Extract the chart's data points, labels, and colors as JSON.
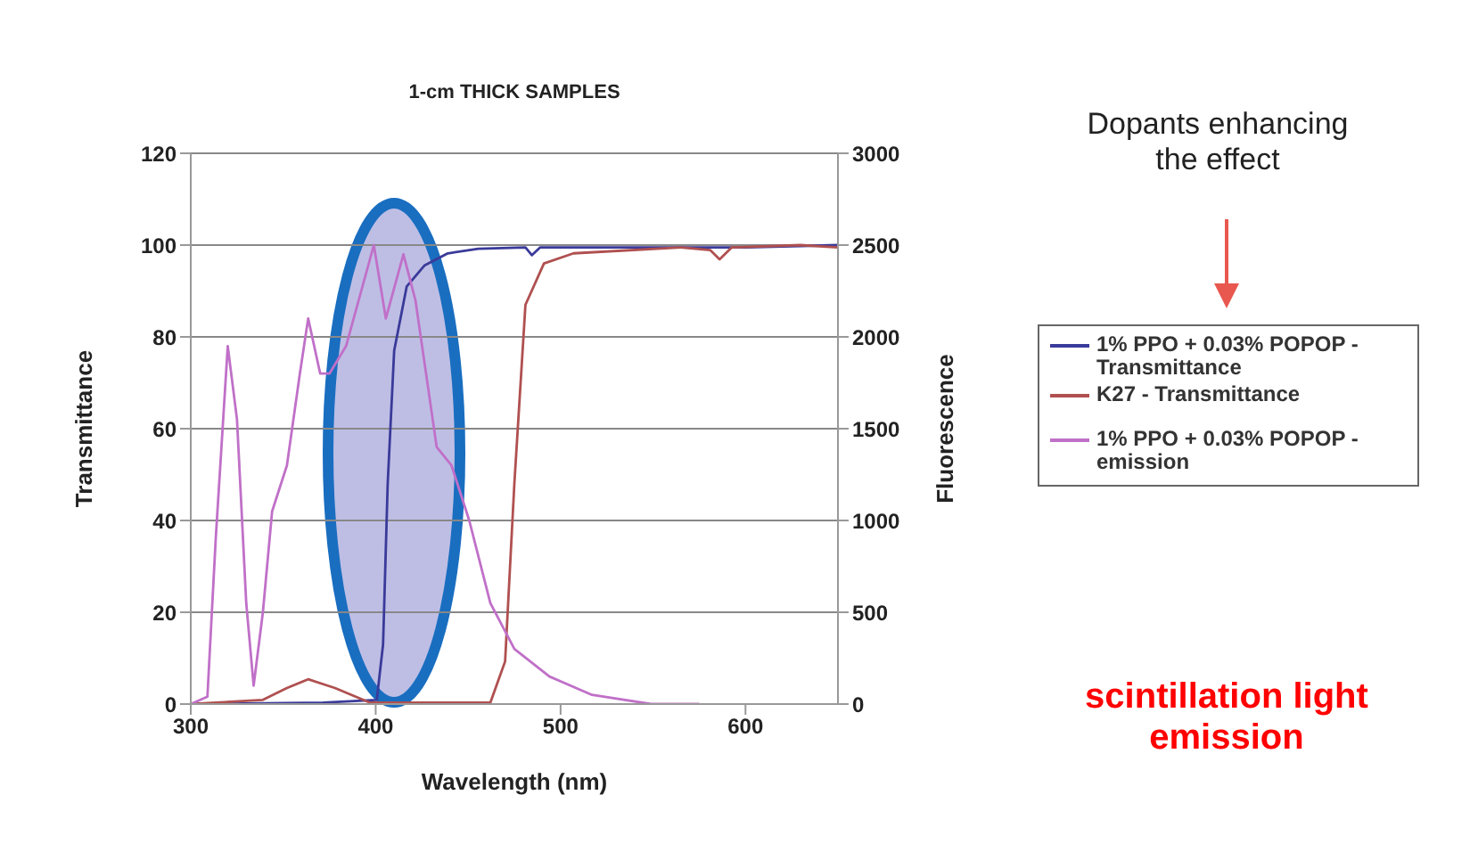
{
  "chart_data": {
    "type": "line",
    "title": "1-cm THICK SAMPLES",
    "xlabel": "Wavelength (nm)",
    "ylabel": "Transmittance",
    "y2label": "Fluorescence",
    "xlim": [
      300,
      650
    ],
    "xticks": [
      300,
      400,
      500,
      600
    ],
    "ylim": [
      0,
      120
    ],
    "yticks": [
      0,
      20,
      40,
      60,
      80,
      100,
      120
    ],
    "y2lim": [
      0,
      3000
    ],
    "y2ticks": [
      0,
      500,
      1000,
      1500,
      2000,
      2500,
      3000
    ],
    "grid": "y",
    "legend": "right",
    "marker": "none",
    "line_style": "solid",
    "annotations": [
      "Dopants enhancing the effect",
      "scintillation light emission"
    ],
    "series": [
      {
        "name": "1% PPO + 0.03% POPOP - Transmittance",
        "color": "#3a3a9a",
        "x": [
          300,
          371.6,
          400.6,
          404,
          406.5,
          410,
          416.8,
          426.5,
          439,
          455.5,
          481,
          484.5,
          489,
          517,
          565,
          600,
          650
        ],
        "values": [
          0,
          0.3,
          0.9,
          13,
          48,
          77,
          91,
          95.6,
          98.2,
          99.2,
          99.5,
          97.8,
          99.5,
          99.5,
          99.5,
          99.5,
          100
        ]
      },
      {
        "name": "K27 - Transmittance",
        "color": "#b05050",
        "x": [
          300,
          339,
          352,
          363.5,
          378,
          397,
          462,
          470,
          475,
          481,
          491,
          507,
          565,
          581,
          586,
          592.6,
          629.7,
          650
        ],
        "values": [
          0,
          0.9,
          3.5,
          5.4,
          3.5,
          0.3,
          0.3,
          9.3,
          48,
          87,
          96,
          98.2,
          99.5,
          98.9,
          96.9,
          99.5,
          100,
          99.5
        ]
      },
      {
        "name": "1% PPO + 0.03% POPOP - emission",
        "color": "#c070c8",
        "axis": "y2",
        "x": [
          300,
          309,
          313.5,
          320,
          325,
          330,
          334,
          339,
          344,
          352,
          359,
          363.5,
          370,
          375,
          384,
          399,
          405.5,
          415,
          421.5,
          433,
          441,
          450.6,
          462,
          475,
          494,
          517,
          549,
          575
        ],
        "values": [
          0,
          40,
          900,
          1950,
          1550,
          550,
          100,
          500,
          1050,
          1300,
          1800,
          2100,
          1800,
          1800,
          1950,
          2500,
          2100,
          2450,
          2200,
          1400,
          1300,
          1000,
          550,
          300,
          150,
          50,
          0,
          0
        ]
      }
    ]
  }
}
